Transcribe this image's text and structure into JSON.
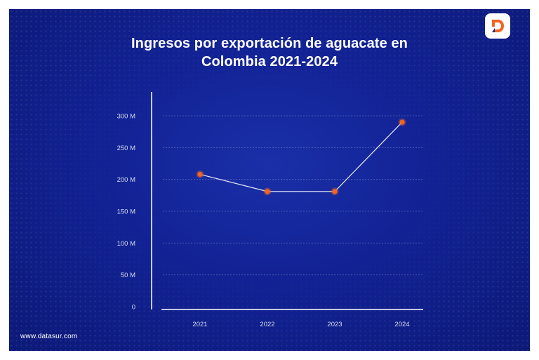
{
  "title_line1": "Ingresos por exportación de aguacate en",
  "title_line2": "Colombia 2021-2024",
  "footer": "www.datasur.com",
  "logo": {
    "icon": "datasur-d-logo-icon",
    "color": "#f26522"
  },
  "colors": {
    "background": "#1222a0",
    "line": "#e8ebf7",
    "marker": "#f26522"
  },
  "chart_data": {
    "type": "line",
    "categories": [
      "2021",
      "2022",
      "2023",
      "2024"
    ],
    "series": [
      {
        "values": [
          208,
          181,
          181,
          290
        ]
      }
    ],
    "y_unit": "M",
    "yticks": [
      "0",
      "50 M",
      "100 M",
      "150 M",
      "200 M",
      "250 M",
      "300 M"
    ],
    "ylim": [
      0,
      300
    ],
    "grid": true
  }
}
